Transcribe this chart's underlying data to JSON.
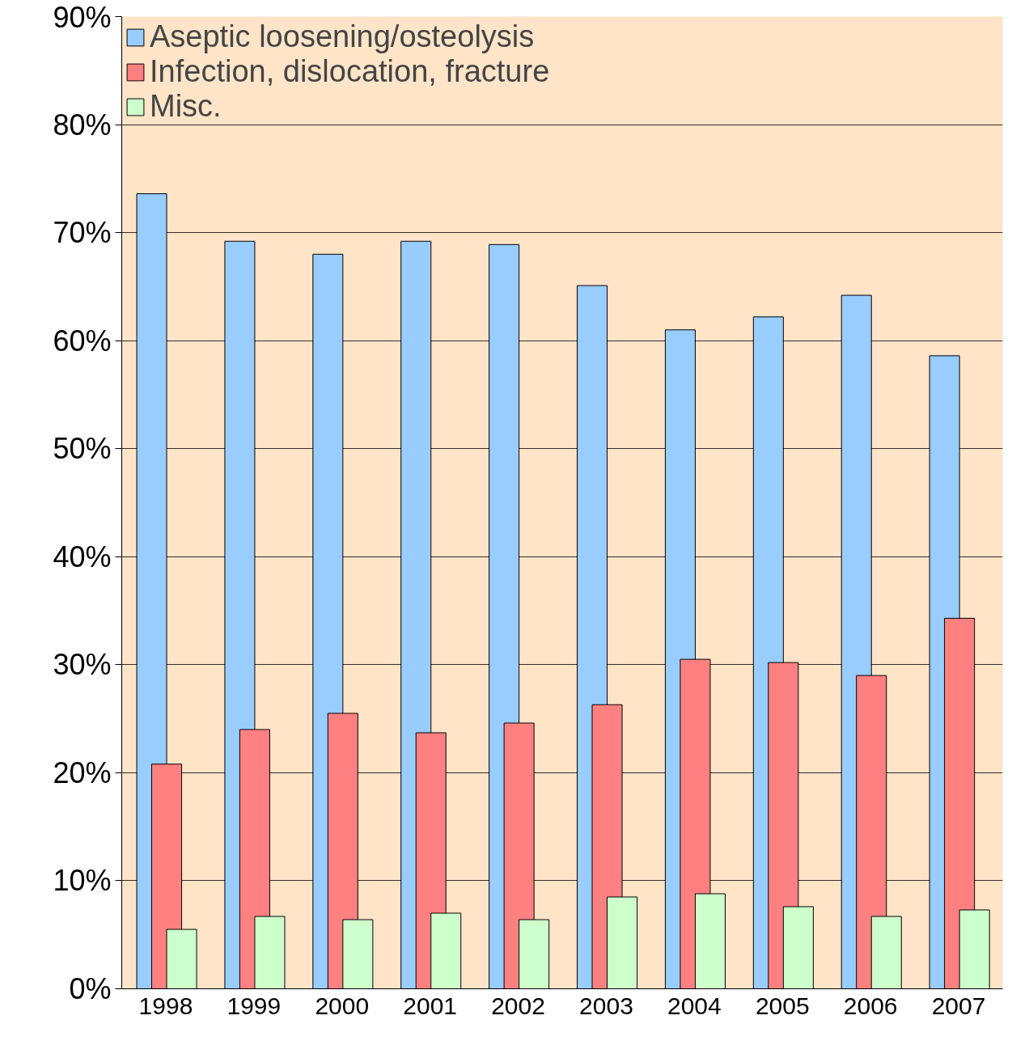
{
  "chart_data": {
    "type": "bar",
    "categories": [
      "1998",
      "1999",
      "2000",
      "2001",
      "2002",
      "2003",
      "2004",
      "2005",
      "2006",
      "2007"
    ],
    "series": [
      {
        "name": "Aseptic loosening/osteolysis",
        "color": "#99ccff",
        "values": [
          73.6,
          69.2,
          68.0,
          69.2,
          68.9,
          65.1,
          61.0,
          62.2,
          64.2,
          58.6
        ]
      },
      {
        "name": "Infection, dislocation, fracture",
        "color": "#ff8080",
        "values": [
          20.8,
          24.0,
          25.5,
          23.7,
          24.6,
          26.3,
          30.5,
          30.2,
          29.0,
          34.3
        ]
      },
      {
        "name": "Misc.",
        "color": "#ccffcc",
        "values": [
          5.5,
          6.7,
          6.4,
          7.0,
          6.4,
          8.5,
          8.8,
          7.6,
          6.7,
          7.3
        ]
      }
    ],
    "ylim": [
      0,
      90
    ],
    "yticks": [
      {
        "value": 0,
        "label": "0%"
      },
      {
        "value": 10,
        "label": "10%"
      },
      {
        "value": 20,
        "label": "20%"
      },
      {
        "value": 30,
        "label": "30%"
      },
      {
        "value": 40,
        "label": "40%"
      },
      {
        "value": 50,
        "label": "50%"
      },
      {
        "value": 60,
        "label": "60%"
      },
      {
        "value": 70,
        "label": "70%"
      },
      {
        "value": 80,
        "label": "80%"
      },
      {
        "value": 90,
        "label": "90%"
      }
    ],
    "grid": "y",
    "legend": "top left"
  }
}
